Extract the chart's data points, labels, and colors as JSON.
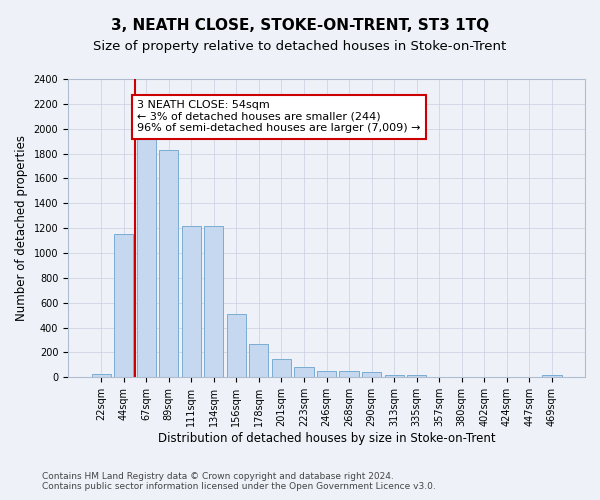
{
  "title": "3, NEATH CLOSE, STOKE-ON-TRENT, ST3 1TQ",
  "subtitle": "Size of property relative to detached houses in Stoke-on-Trent",
  "xlabel": "Distribution of detached houses by size in Stoke-on-Trent",
  "ylabel": "Number of detached properties",
  "categories": [
    "22sqm",
    "44sqm",
    "67sqm",
    "89sqm",
    "111sqm",
    "134sqm",
    "156sqm",
    "178sqm",
    "201sqm",
    "223sqm",
    "246sqm",
    "268sqm",
    "290sqm",
    "313sqm",
    "335sqm",
    "357sqm",
    "380sqm",
    "402sqm",
    "424sqm",
    "447sqm",
    "469sqm"
  ],
  "values": [
    30,
    1150,
    1950,
    1830,
    1220,
    1220,
    510,
    265,
    150,
    80,
    50,
    50,
    40,
    20,
    20,
    5,
    5,
    5,
    5,
    5,
    20
  ],
  "bar_color": "#c5d8ef",
  "bar_edge_color": "#7aadd4",
  "vline_color": "#cc0000",
  "vline_x": 1.5,
  "annotation_text": "3 NEATH CLOSE: 54sqm\n← 3% of detached houses are smaller (244)\n96% of semi-detached houses are larger (7,009) →",
  "annotation_box_color": "#ffffff",
  "annotation_box_edge_color": "#cc0000",
  "ylim": [
    0,
    2400
  ],
  "yticks": [
    0,
    200,
    400,
    600,
    800,
    1000,
    1200,
    1400,
    1600,
    1800,
    2000,
    2200,
    2400
  ],
  "footer_line1": "Contains HM Land Registry data © Crown copyright and database right 2024.",
  "footer_line2": "Contains public sector information licensed under the Open Government Licence v3.0.",
  "bg_color": "#eef2f8",
  "plot_bg_color": "#eef2f8",
  "title_fontsize": 11,
  "subtitle_fontsize": 9.5,
  "axis_label_fontsize": 8.5,
  "tick_fontsize": 7,
  "annotation_fontsize": 8,
  "footer_fontsize": 6.5
}
